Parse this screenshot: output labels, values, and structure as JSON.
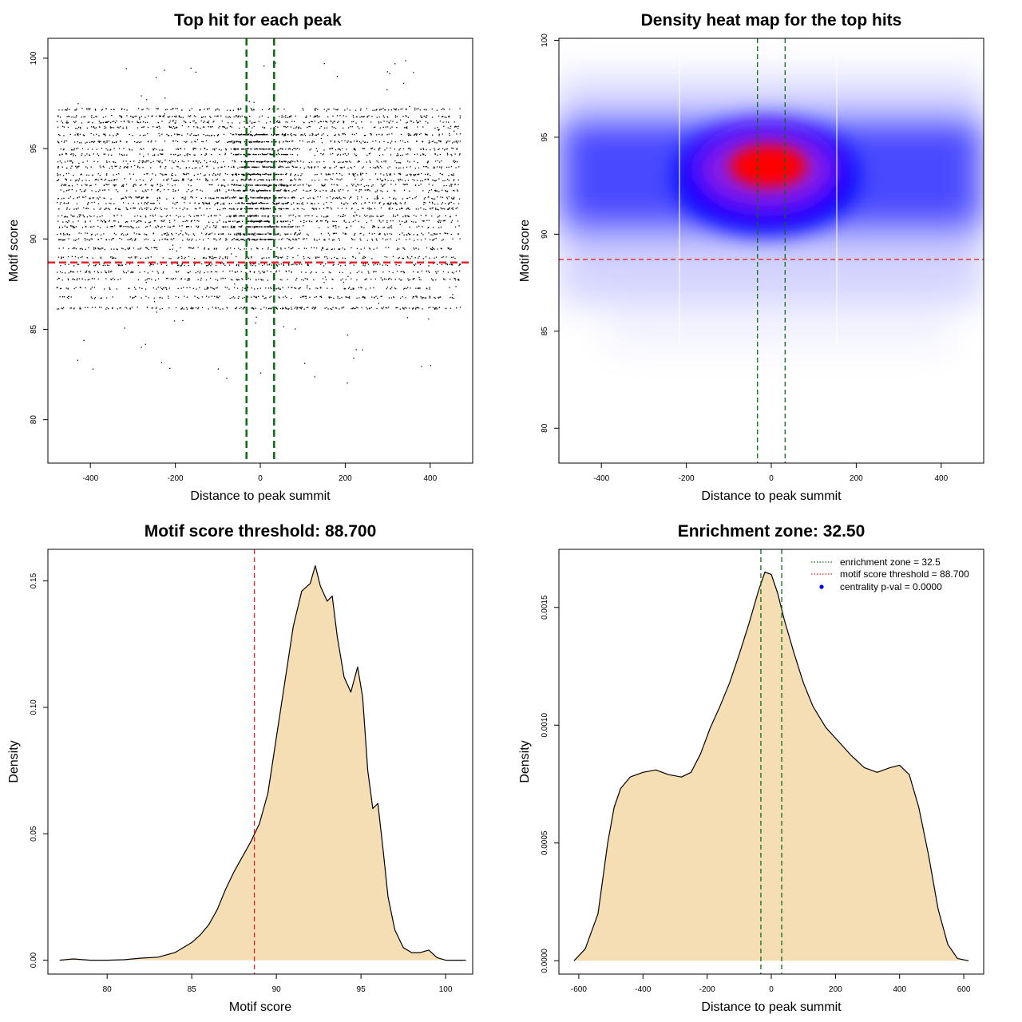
{
  "chart_data": [
    {
      "id": "scatter",
      "type": "scatter",
      "title": "Top hit for each peak",
      "xlabel": "Distance to peak summit",
      "ylabel": "Motif score",
      "xlim": [
        -500,
        500
      ],
      "ylim": [
        77.6,
        101.1
      ],
      "xticks": [
        -400,
        -200,
        0,
        200,
        400
      ],
      "yticks": [
        80,
        85,
        90,
        95,
        100
      ],
      "n_points_approx": 4500,
      "y_levels": [
        86.2,
        86.8,
        87.3,
        87.8,
        88.2,
        88.6,
        89.0,
        89.5,
        90.0,
        90.3,
        90.7,
        91.0,
        91.3,
        91.7,
        92.0,
        92.3,
        92.7,
        93.0,
        93.3,
        93.6,
        94.0,
        94.3,
        94.7,
        95.0,
        95.4,
        95.8,
        96.2,
        96.5,
        96.8,
        97.2
      ],
      "hlines": [
        {
          "y": 88.7,
          "color": "#e8212a"
        }
      ],
      "vlines": [
        {
          "x": -32.5,
          "color": "#0b6b12"
        },
        {
          "x": 32.5,
          "color": "#0b6b12"
        }
      ]
    },
    {
      "id": "heatmap",
      "type": "heatmap",
      "title": "Density heat map for the top hits",
      "xlabel": "Distance to peak summit",
      "ylabel": "Motif score",
      "xlim": [
        -500,
        500
      ],
      "ylim": [
        78.2,
        100.1
      ],
      "xticks": [
        -400,
        -200,
        0,
        200,
        400
      ],
      "yticks": [
        80,
        85,
        90,
        95,
        100
      ],
      "colorscale": [
        "#ffffff",
        "#0000ff",
        "#ff0000"
      ],
      "hotspot": {
        "x": -5,
        "y": 93.6
      },
      "hlines": [
        {
          "y": 88.7,
          "color": "#e8212a"
        }
      ],
      "vlines": [
        {
          "x": -32.5,
          "color": "#0b6b12"
        },
        {
          "x": 32.5,
          "color": "#0b6b12"
        }
      ]
    },
    {
      "id": "score_density",
      "type": "area",
      "title": "Motif score threshold: 88.700",
      "xlabel": "Motif score",
      "ylabel": "Density",
      "xlim": [
        76.5,
        101.6
      ],
      "ylim": [
        -0.0055,
        0.1625
      ],
      "xticks": [
        80,
        85,
        90,
        95,
        100
      ],
      "yticks": [
        0.0,
        0.05,
        0.1,
        0.15
      ],
      "ytick_labels": [
        "0.00",
        "0.05",
        "0.10",
        "0.15"
      ],
      "fill": "#f5deb3",
      "x": [
        77.2,
        78,
        79,
        80,
        81,
        82,
        83,
        84,
        85,
        85.5,
        86,
        86.5,
        87,
        87.5,
        88,
        88.5,
        89,
        89.5,
        90,
        90.5,
        91,
        91.5,
        92,
        92.3,
        92.6,
        93,
        93.3,
        93.6,
        94,
        94.4,
        94.8,
        95.1,
        95.4,
        95.7,
        96,
        96.3,
        96.6,
        97,
        97.5,
        98,
        98.5,
        99,
        99.5,
        100,
        101.2
      ],
      "y": [
        0.0,
        0.0005,
        0.0,
        0.0,
        0.0002,
        0.0008,
        0.0012,
        0.003,
        0.007,
        0.01,
        0.014,
        0.02,
        0.028,
        0.035,
        0.041,
        0.047,
        0.054,
        0.066,
        0.088,
        0.11,
        0.132,
        0.146,
        0.149,
        0.156,
        0.148,
        0.142,
        0.144,
        0.128,
        0.112,
        0.106,
        0.116,
        0.104,
        0.075,
        0.06,
        0.062,
        0.044,
        0.025,
        0.012,
        0.005,
        0.003,
        0.003,
        0.004,
        0.001,
        0.0,
        0.0
      ],
      "vlines": [
        {
          "x": 88.7,
          "color": "#e8212a"
        }
      ]
    },
    {
      "id": "distance_density",
      "type": "area",
      "title": "Enrichment zone: 32.50",
      "xlabel": "Distance to peak summit",
      "ylabel": "Density",
      "xlim": [
        -662,
        662
      ],
      "ylim": [
        -5.65e-05,
        0.0017465
      ],
      "xticks": [
        -600,
        -400,
        -200,
        0,
        200,
        400,
        600
      ],
      "yticks": [
        0.0,
        0.0005,
        0.001,
        0.0015
      ],
      "ytick_labels": [
        "0.0000",
        "0.0005",
        "0.0010",
        "0.0015"
      ],
      "fill": "#f5deb3",
      "x": [
        -615,
        -580,
        -540,
        -510,
        -490,
        -470,
        -440,
        -400,
        -360,
        -320,
        -280,
        -250,
        -220,
        -190,
        -160,
        -130,
        -100,
        -70,
        -40,
        -20,
        0,
        20,
        40,
        70,
        100,
        130,
        170,
        210,
        250,
        290,
        330,
        370,
        400,
        430,
        460,
        490,
        520,
        550,
        580,
        615
      ],
      "y": [
        0.0,
        5e-05,
        0.0002,
        0.0005,
        0.00065,
        0.00073,
        0.00078,
        0.0008,
        0.00081,
        0.00079,
        0.00078,
        0.0008,
        0.00088,
        0.00099,
        0.00108,
        0.00118,
        0.0013,
        0.00143,
        0.00157,
        0.00165,
        0.00164,
        0.00156,
        0.00145,
        0.00131,
        0.00118,
        0.00108,
        0.00099,
        0.00093,
        0.00087,
        0.00082,
        0.0008,
        0.00082,
        0.00083,
        0.00079,
        0.00065,
        0.00045,
        0.00022,
        7e-05,
        1e-05,
        0.0
      ],
      "vlines": [
        {
          "x": -32.5,
          "color": "#0b6b12"
        },
        {
          "x": 32.5,
          "color": "#0b6b12"
        }
      ],
      "legend": {
        "position": "top-right",
        "entries": [
          {
            "label": "enrichment zone = 32.5",
            "color": "#0b6b12",
            "style": "dotted-line"
          },
          {
            "label": "motif score threshold = 88.700",
            "color": "#e8212a",
            "style": "dotted-line"
          },
          {
            "label": "centrality p-val = 0.0000",
            "color": "#0000ff",
            "style": "point"
          }
        ]
      }
    }
  ]
}
